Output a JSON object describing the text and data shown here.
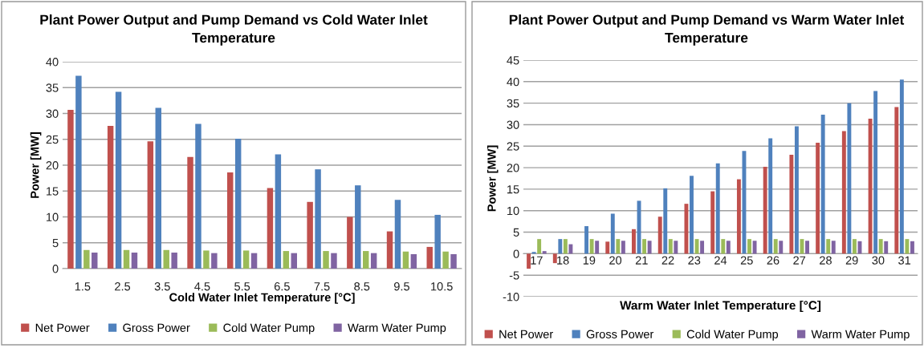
{
  "chart_data": [
    {
      "type": "bar",
      "title": "Plant Power Output and Pump Demand vs Cold Water Inlet Temperature",
      "xlabel": "Cold Water Inlet Temperature [°C]",
      "ylabel": "Power [MW]",
      "categories": [
        "1.5",
        "2.5",
        "3.5",
        "4.5",
        "5.5",
        "6.5",
        "7.5",
        "8.5",
        "9.5",
        "10.5"
      ],
      "series": [
        {
          "name": "Net Power",
          "color": "#c0504d",
          "values": [
            30.7,
            27.6,
            24.6,
            21.6,
            18.6,
            15.6,
            12.9,
            10.0,
            7.2,
            4.2
          ]
        },
        {
          "name": "Gross Power",
          "color": "#4f81bd",
          "values": [
            37.3,
            34.2,
            31.1,
            28.0,
            25.1,
            22.1,
            19.2,
            16.1,
            13.3,
            10.4
          ]
        },
        {
          "name": "Cold Water Pump",
          "color": "#9bbb59",
          "values": [
            3.6,
            3.6,
            3.6,
            3.5,
            3.5,
            3.4,
            3.4,
            3.4,
            3.3,
            3.3
          ]
        },
        {
          "name": "Warm Water Pump",
          "color": "#8064a2",
          "values": [
            3.1,
            3.1,
            3.1,
            3.0,
            3.0,
            3.0,
            3.0,
            3.0,
            2.8,
            2.8
          ]
        }
      ],
      "ylim": [
        0,
        40
      ],
      "yticks": [
        0,
        5,
        10,
        15,
        20,
        25,
        30,
        35,
        40
      ],
      "grid": "y",
      "legend": "bottom"
    },
    {
      "type": "bar",
      "title": "Plant Power Output and Pump Demand vs Warm Water Inlet Temperature",
      "xlabel": "Warm Water Inlet Temperature [°C]",
      "ylabel": "Power [MW]",
      "categories": [
        "17",
        "18",
        "19",
        "20",
        "21",
        "22",
        "23",
        "24",
        "25",
        "26",
        "27",
        "28",
        "29",
        "30",
        "31"
      ],
      "series": [
        {
          "name": "Net Power",
          "color": "#c0504d",
          "values": [
            -3.5,
            -2.2,
            0.0,
            2.8,
            5.7,
            8.6,
            11.6,
            14.5,
            17.3,
            20.2,
            23.0,
            25.8,
            28.5,
            31.4,
            34.1
          ]
        },
        {
          "name": "Gross Power",
          "color": "#4f81bd",
          "values": [
            0.4,
            3.4,
            6.4,
            9.3,
            12.3,
            15.2,
            18.1,
            21.0,
            23.9,
            26.8,
            29.6,
            32.3,
            35.0,
            37.8,
            40.5
          ]
        },
        {
          "name": "Cold Water Pump",
          "color": "#9bbb59",
          "values": [
            3.4,
            3.4,
            3.4,
            3.4,
            3.4,
            3.4,
            3.4,
            3.4,
            3.4,
            3.4,
            3.4,
            3.4,
            3.4,
            3.4,
            3.4
          ]
        },
        {
          "name": "Warm Water Pump",
          "color": "#8064a2",
          "values": [
            0.6,
            2.2,
            3.0,
            3.0,
            3.0,
            3.0,
            3.0,
            3.0,
            3.0,
            3.0,
            3.0,
            3.0,
            2.9,
            2.9,
            2.9
          ]
        }
      ],
      "ylim": [
        -10,
        45
      ],
      "yticks": [
        -10,
        -5,
        0,
        5,
        10,
        15,
        20,
        25,
        30,
        35,
        40,
        45
      ],
      "grid": "y",
      "legend": "bottom"
    }
  ]
}
